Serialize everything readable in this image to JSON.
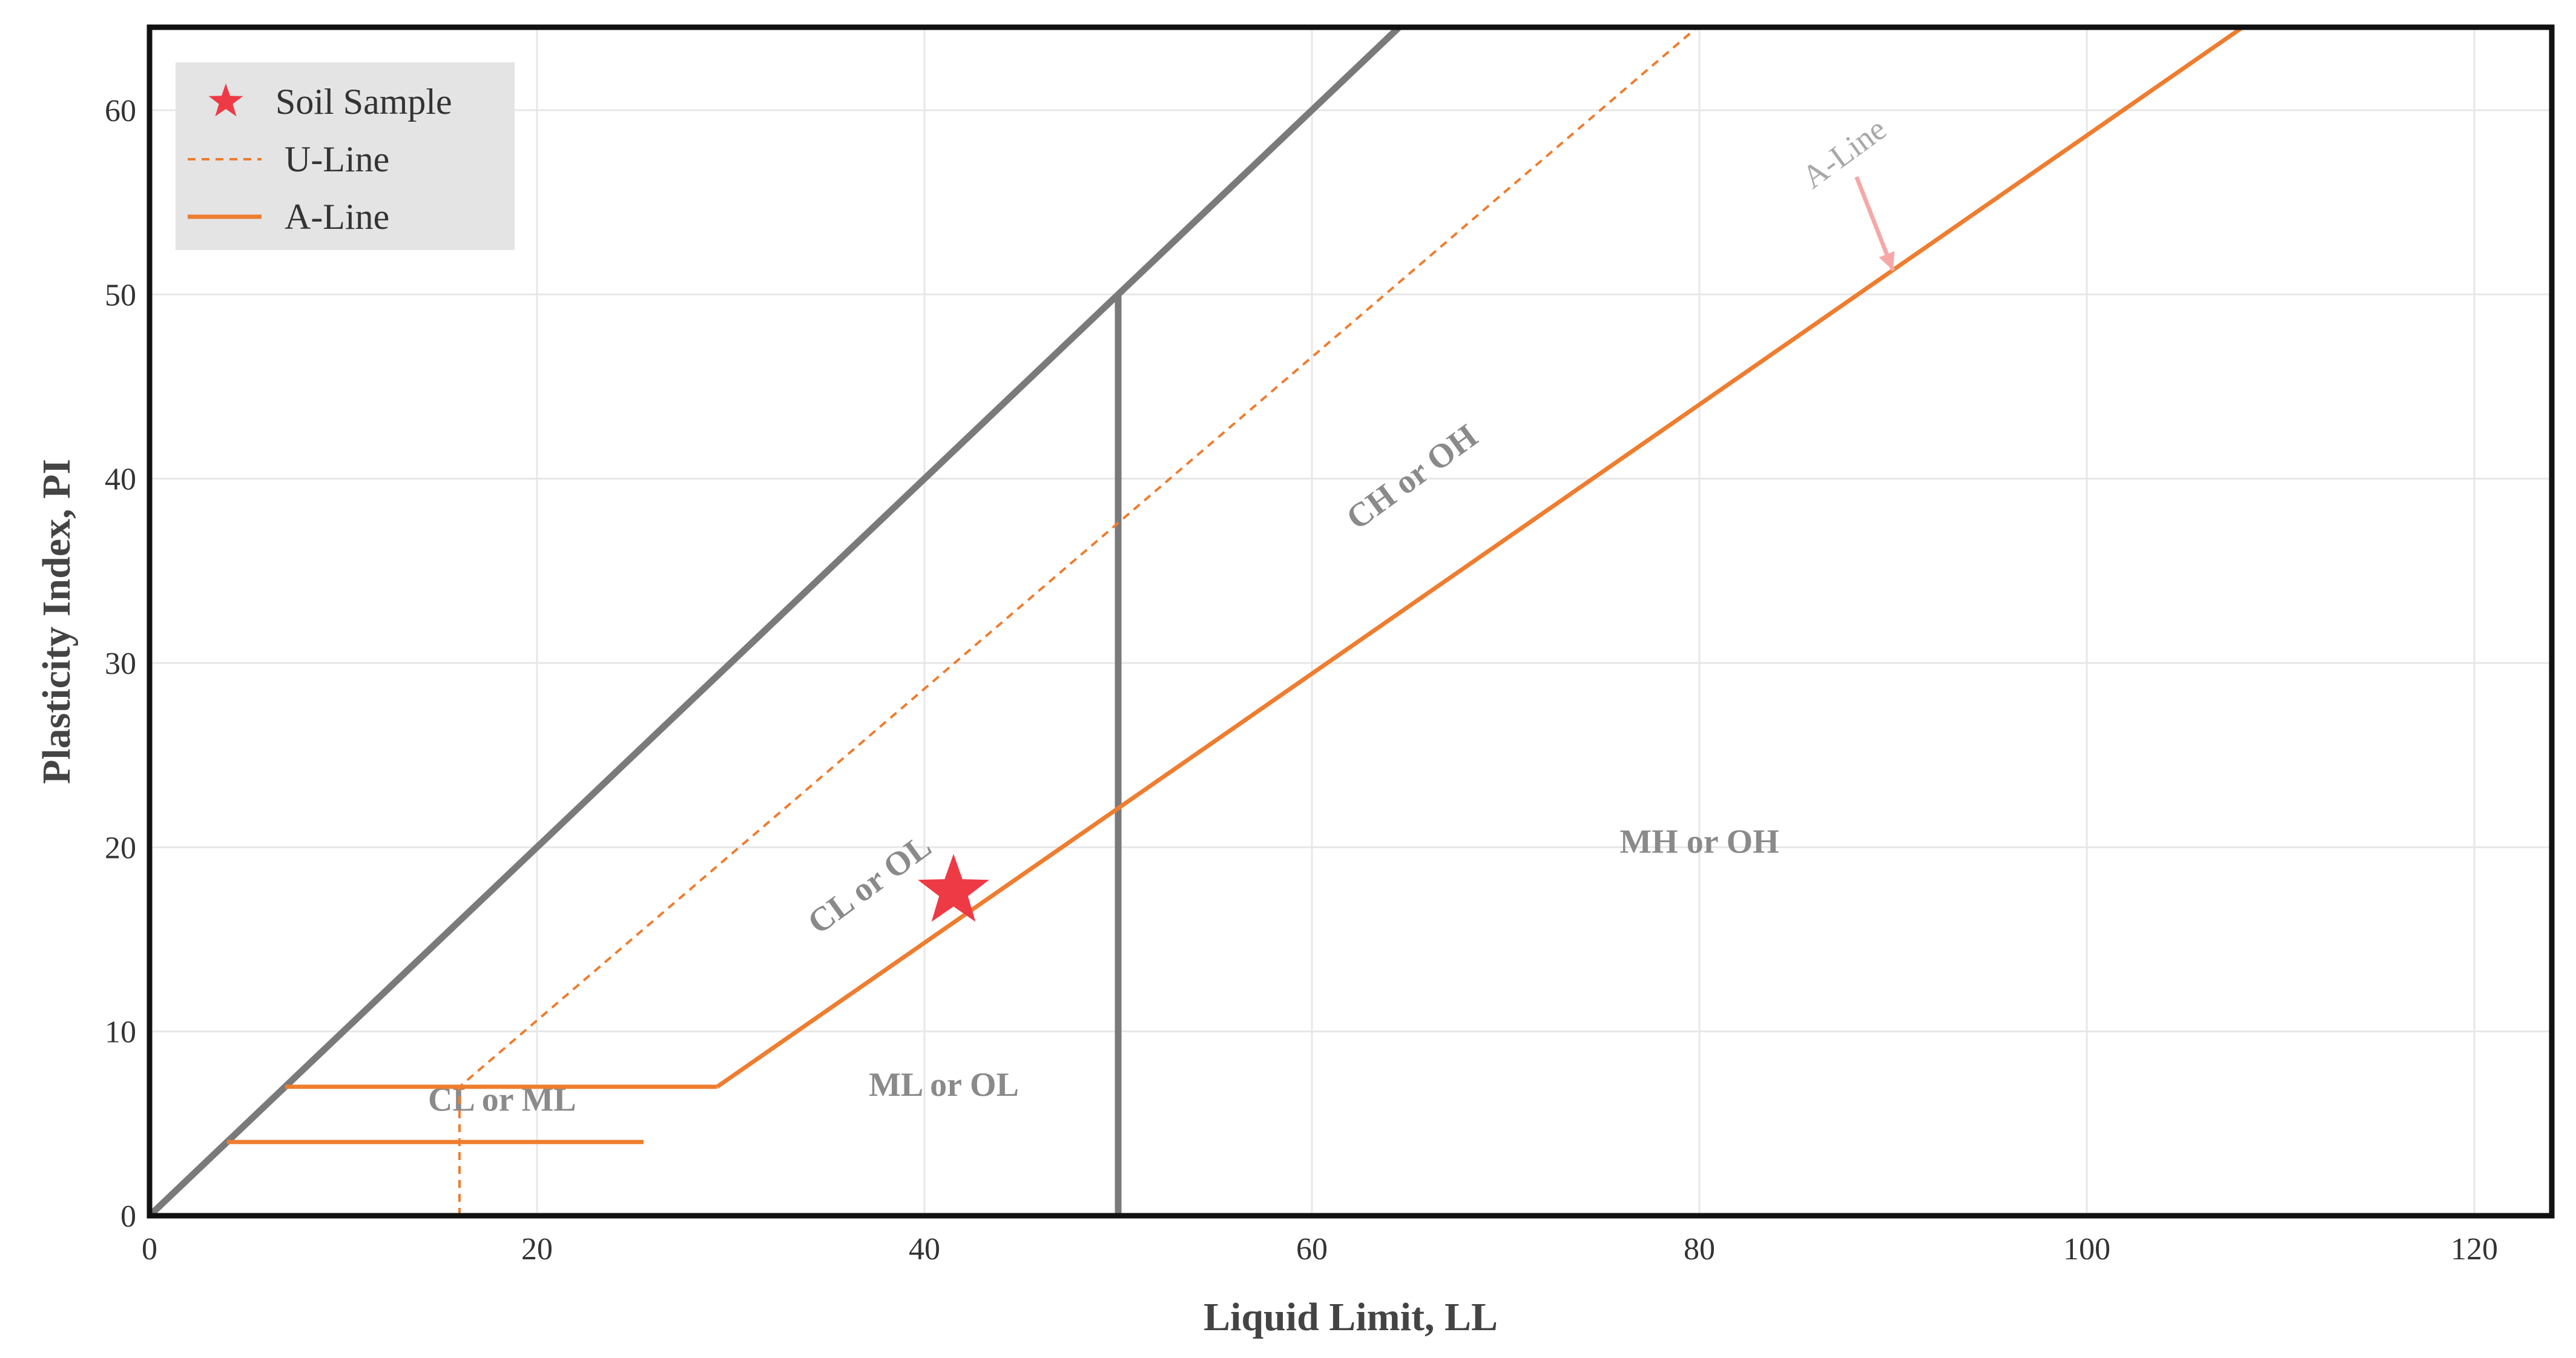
{
  "chart_data": {
    "type": "line",
    "title": "",
    "xlabel": "Liquid Limit, LL",
    "ylabel": "Plasticity Index, PI",
    "xlim": [
      0,
      124
    ],
    "ylim": [
      0,
      64.5
    ],
    "x_ticks": [
      0,
      20,
      40,
      60,
      80,
      100,
      120
    ],
    "y_ticks": [
      0,
      10,
      20,
      30,
      40,
      50,
      60
    ],
    "grid": true,
    "legend_position": "top-left",
    "colors": {
      "a_line": "#ee7d2f",
      "u_line": "#ee7d2f",
      "boundary": "#7a7a7a",
      "sample": "#ee3a45",
      "annotation_arrow": "#f6a8a8",
      "legend_bg": "#e4e4e4"
    },
    "series": [
      {
        "name": "Soil Sample",
        "kind": "scatter",
        "marker": "star",
        "points": [
          {
            "x": 41.5,
            "y": 17.6
          }
        ]
      },
      {
        "name": "U-Line",
        "kind": "line",
        "dash": "dashed",
        "points": [
          [
            16,
            0
          ],
          [
            16,
            7
          ],
          [
            80,
            64.6
          ]
        ]
      },
      {
        "name": "A-Line",
        "kind": "line",
        "dash": "solid",
        "points": [
          [
            29.3,
            7
          ],
          [
            109,
            65.2
          ]
        ]
      }
    ],
    "boundary_lines": [
      {
        "name": "PI equals LL",
        "points": [
          [
            0,
            0
          ],
          [
            65,
            65
          ]
        ]
      },
      {
        "name": "LL equals 50",
        "points": [
          [
            50,
            0
          ],
          [
            50,
            50
          ]
        ]
      }
    ],
    "cl_ml_zone": {
      "lower_pi": 4,
      "upper_pi": 7,
      "lower_segment": [
        [
          4,
          4
        ],
        [
          25.5,
          4
        ]
      ],
      "upper_segment": [
        [
          7,
          7
        ],
        [
          29.3,
          7
        ]
      ]
    },
    "region_labels": [
      {
        "text": "CL or OL",
        "x": 37.5,
        "y": 17.5,
        "rotation": -36.2
      },
      {
        "text": "CH or OH",
        "x": 65.5,
        "y": 39.6,
        "rotation": -36.2
      },
      {
        "text": "MH or OH",
        "x": 80,
        "y": 19.7,
        "rotation": 0
      },
      {
        "text": "ML or OL",
        "x": 41,
        "y": 6.5,
        "rotation": 0
      },
      {
        "text": "CL or ML",
        "x": 18.2,
        "y": 5.7,
        "rotation": 0
      }
    ],
    "annotations": [
      {
        "text": "A-Line",
        "x": 87.8,
        "y": 57.2,
        "arrow_to": [
          90,
          51.3
        ]
      }
    ]
  }
}
